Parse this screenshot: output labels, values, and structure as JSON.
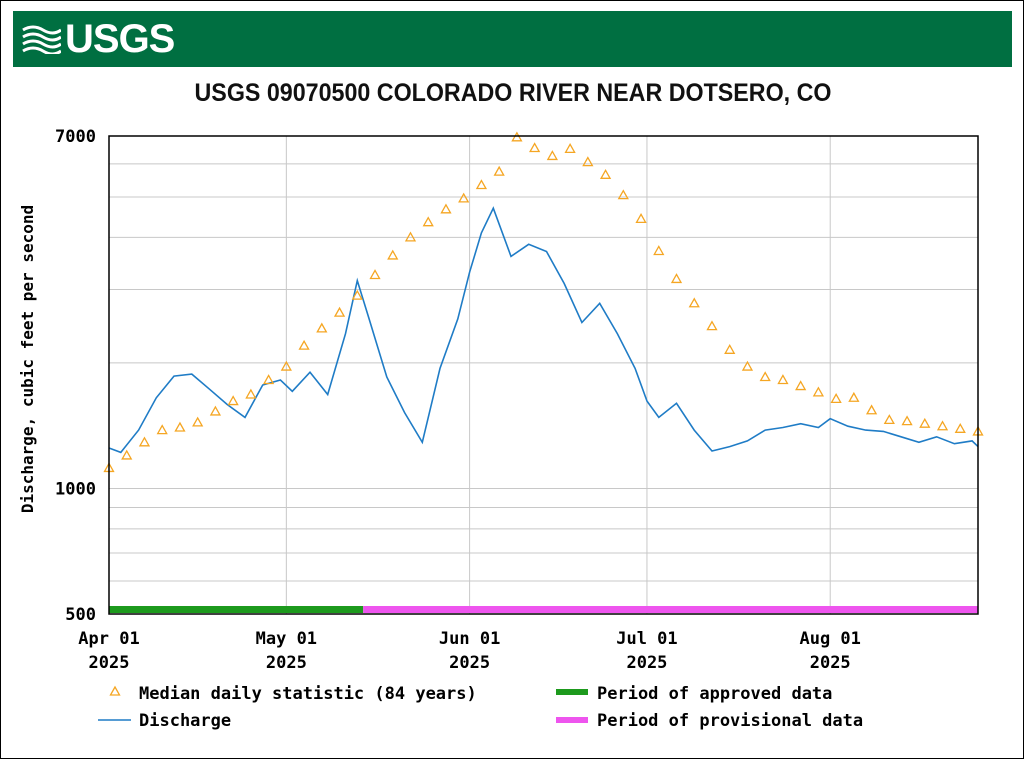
{
  "banner": {
    "logo_text": "USGS",
    "color": "#006f41"
  },
  "title": "USGS 09070500 COLORADO RIVER NEAR DOTSERO, CO",
  "chart_data": {
    "type": "line",
    "title": "USGS 09070500 COLORADO RIVER NEAR DOTSERO, CO",
    "ylabel": "Discharge, cubic feet per second",
    "xlabel": "",
    "yscale": "log",
    "ylim": [
      500,
      7000
    ],
    "ytick_labels": [
      "7000",
      "1000",
      "500"
    ],
    "xlim": [
      "2025-04-01",
      "2025-08-26"
    ],
    "xtick_labels": [
      [
        "Apr 01",
        "2025"
      ],
      [
        "May 01",
        "2025"
      ],
      [
        "Jun 01",
        "2025"
      ],
      [
        "Jul 01",
        "2025"
      ],
      [
        "Aug 01",
        "2025"
      ]
    ],
    "grid": true,
    "series": [
      {
        "name": "Median daily statistic (84 years)",
        "style": "triangle-markers",
        "color": "#f5a623",
        "x": [
          "2025-04-01",
          "2025-04-04",
          "2025-04-07",
          "2025-04-10",
          "2025-04-13",
          "2025-04-16",
          "2025-04-19",
          "2025-04-22",
          "2025-04-25",
          "2025-04-28",
          "2025-05-01",
          "2025-05-04",
          "2025-05-07",
          "2025-05-10",
          "2025-05-13",
          "2025-05-16",
          "2025-05-19",
          "2025-05-22",
          "2025-05-25",
          "2025-05-28",
          "2025-05-31",
          "2025-06-03",
          "2025-06-06",
          "2025-06-09",
          "2025-06-12",
          "2025-06-15",
          "2025-06-18",
          "2025-06-21",
          "2025-06-24",
          "2025-06-27",
          "2025-06-30",
          "2025-07-03",
          "2025-07-06",
          "2025-07-09",
          "2025-07-12",
          "2025-07-15",
          "2025-07-18",
          "2025-07-21",
          "2025-07-24",
          "2025-07-27",
          "2025-07-30",
          "2025-08-02",
          "2025-08-05",
          "2025-08-08",
          "2025-08-11",
          "2025-08-14",
          "2025-08-17",
          "2025-08-20",
          "2025-08-23",
          "2025-08-26"
        ],
        "values": [
          1120,
          1200,
          1290,
          1380,
          1400,
          1440,
          1530,
          1620,
          1680,
          1820,
          1960,
          2200,
          2420,
          2640,
          2900,
          3250,
          3620,
          4000,
          4350,
          4670,
          4960,
          5340,
          5750,
          6950,
          6550,
          6270,
          6520,
          6060,
          5650,
          5050,
          4430,
          3710,
          3180,
          2780,
          2450,
          2150,
          1960,
          1850,
          1820,
          1760,
          1700,
          1640,
          1650,
          1540,
          1460,
          1450,
          1430,
          1410,
          1390,
          1370
        ]
      },
      {
        "name": "Discharge",
        "style": "line",
        "color": "#1f7cc6",
        "x": [
          "2025-04-01",
          "2025-04-03",
          "2025-04-06",
          "2025-04-09",
          "2025-04-12",
          "2025-04-15",
          "2025-04-18",
          "2025-04-21",
          "2025-04-24",
          "2025-04-27",
          "2025-04-30",
          "2025-05-02",
          "2025-05-05",
          "2025-05-08",
          "2025-05-11",
          "2025-05-13",
          "2025-05-15",
          "2025-05-18",
          "2025-05-21",
          "2025-05-24",
          "2025-05-27",
          "2025-05-30",
          "2025-06-01",
          "2025-06-03",
          "2025-06-05",
          "2025-06-08",
          "2025-06-11",
          "2025-06-14",
          "2025-06-17",
          "2025-06-20",
          "2025-06-23",
          "2025-06-26",
          "2025-06-29",
          "2025-07-01",
          "2025-07-03",
          "2025-07-06",
          "2025-07-09",
          "2025-07-12",
          "2025-07-15",
          "2025-07-18",
          "2025-07-21",
          "2025-07-24",
          "2025-07-27",
          "2025-07-30",
          "2025-08-01",
          "2025-08-04",
          "2025-08-07",
          "2025-08-10",
          "2025-08-13",
          "2025-08-16",
          "2025-08-19",
          "2025-08-22",
          "2025-08-25",
          "2025-08-26"
        ],
        "values": [
          1250,
          1220,
          1380,
          1650,
          1860,
          1880,
          1730,
          1590,
          1480,
          1770,
          1820,
          1710,
          1900,
          1680,
          2350,
          3150,
          2550,
          1850,
          1520,
          1290,
          1940,
          2550,
          3300,
          4100,
          4700,
          3600,
          3850,
          3700,
          3100,
          2500,
          2780,
          2350,
          1940,
          1620,
          1480,
          1600,
          1380,
          1230,
          1260,
          1300,
          1380,
          1400,
          1430,
          1400,
          1470,
          1410,
          1380,
          1370,
          1330,
          1290,
          1330,
          1280,
          1300,
          1260
        ]
      }
    ],
    "bands": [
      {
        "name": "Period of approved data",
        "from": "2025-04-01",
        "to": "2025-05-14",
        "color": "#1d9a1d"
      },
      {
        "name": "Period of provisional data",
        "from": "2025-05-14",
        "to": "2025-08-26",
        "color": "#ee55ee"
      }
    ],
    "legend": {
      "placement": "bottom",
      "items": [
        "Median daily statistic (84 years)",
        "Period of approved data",
        "Discharge",
        "Period of provisional data"
      ]
    }
  }
}
